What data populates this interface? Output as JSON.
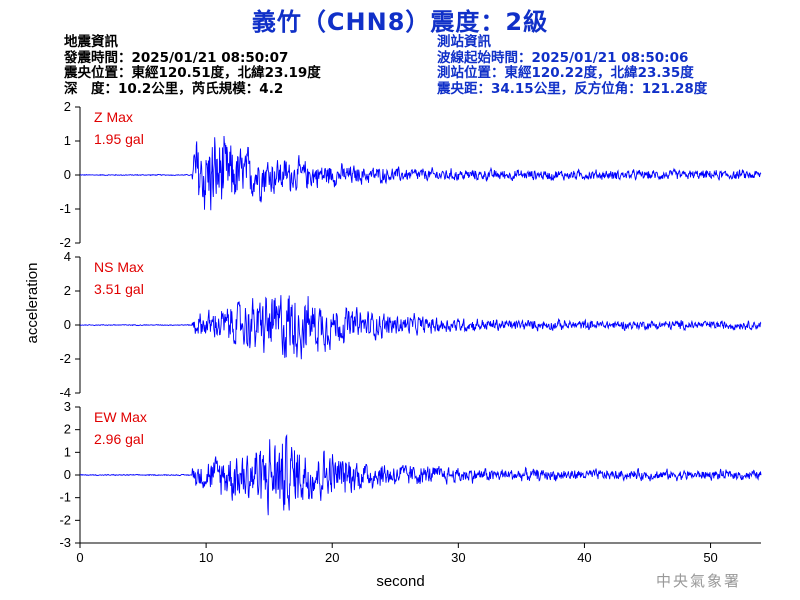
{
  "header": {
    "title": "義竹（CHN8）震度：2級"
  },
  "event_info": {
    "heading": "地震資訊",
    "origin_time": "發震時間：2025/01/21 08:50:07",
    "epicenter": "震央位置：東經120.51度，北緯23.19度",
    "depth_magnitude": "深　度：10.2公里，芮氏規模：4.2"
  },
  "station_info": {
    "heading": "測站資訊",
    "wave_start": "波線起始時間：2025/01/21 08:50:06",
    "location": "測站位置：東經120.22度，北緯23.35度",
    "distance": "震央距：34.15公里，反方位角：121.28度"
  },
  "credit": "中央氣象署",
  "colors": {
    "trace": "#0000ff",
    "label": "#e00000",
    "title": "#1030c8"
  },
  "chart_data": {
    "type": "line",
    "xlabel": "second",
    "ylabel": "acceleration",
    "xlim": [
      0,
      54
    ],
    "xticks": [
      0,
      10,
      20,
      30,
      40,
      50
    ],
    "series": [
      {
        "name": "Z Max",
        "max_label": "1.95 gal",
        "peak": 1.95,
        "ylim": [
          -2,
          2
        ],
        "yticks": [
          -2,
          -1,
          0,
          1,
          2
        ],
        "arrival": 8.9,
        "envelope_peak_time": 10.5
      },
      {
        "name": "NS Max",
        "max_label": "3.51 gal",
        "peak": 3.51,
        "ylim": [
          -4,
          4
        ],
        "yticks": [
          -4,
          -2,
          0,
          2,
          4
        ],
        "arrival": 8.9,
        "envelope_peak_time": 16.5
      },
      {
        "name": "EW Max",
        "max_label": "2.96 gal",
        "peak": 2.96,
        "ylim": [
          -3,
          3
        ],
        "yticks": [
          -3,
          -2,
          -1,
          0,
          1,
          2,
          3
        ],
        "arrival": 8.9,
        "envelope_peak_time": 16.0
      }
    ]
  }
}
